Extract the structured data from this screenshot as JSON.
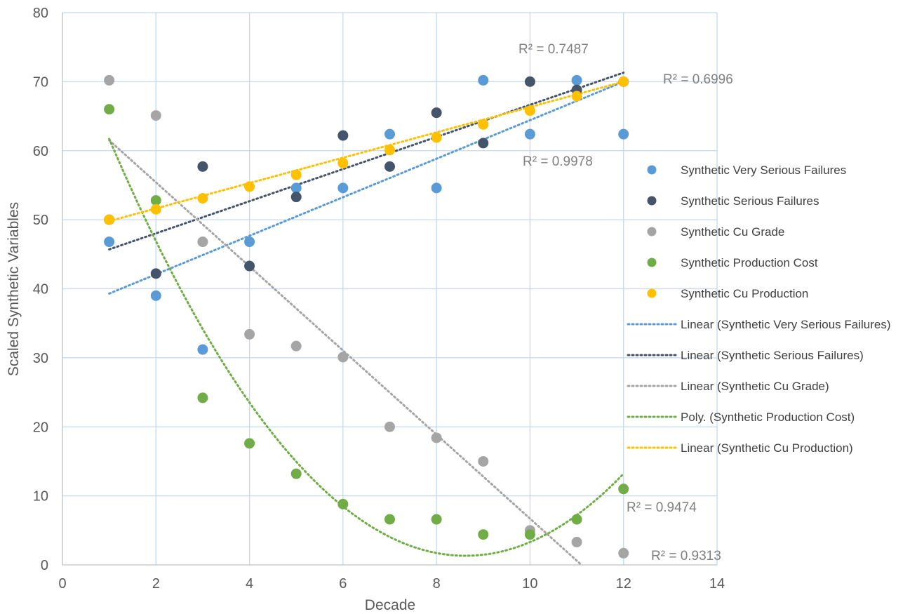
{
  "chart_data": {
    "type": "scatter",
    "xlabel": "Decade",
    "ylabel": "Scaled Synthetic Variables",
    "xlim": [
      0,
      14
    ],
    "ylim": [
      0,
      80
    ],
    "xticks": [
      0,
      2,
      4,
      6,
      8,
      10,
      12,
      14
    ],
    "yticks": [
      0,
      10,
      20,
      30,
      40,
      50,
      60,
      70,
      80
    ],
    "grid": true,
    "legend_position": "right",
    "series": [
      {
        "name": "Synthetic Very Serious Failures",
        "color": "#5B9BD5",
        "x": [
          1,
          2,
          3,
          4,
          5,
          6,
          7,
          8,
          9,
          10,
          11,
          12
        ],
        "y": [
          46.8,
          39.0,
          31.2,
          46.8,
          54.6,
          54.6,
          62.4,
          54.6,
          70.2,
          62.4,
          70.2,
          62.4
        ],
        "trendline": {
          "kind": "linear",
          "label": "Linear (Synthetic Very Serious Failures)",
          "from": [
            1,
            39.3
          ],
          "to": [
            12,
            70.0
          ]
        },
        "r2": "R² = 0.7487"
      },
      {
        "name": "Synthetic Serious Failures",
        "color": "#44546A",
        "x": [
          1,
          2,
          3,
          4,
          5,
          6,
          7,
          8,
          9,
          10,
          11,
          12
        ],
        "y": [
          50.0,
          42.2,
          57.7,
          43.3,
          53.3,
          62.2,
          57.7,
          65.5,
          61.1,
          70.0,
          68.8,
          70.0
        ],
        "trendline": {
          "kind": "linear",
          "label": "Linear (Synthetic Serious Failures)",
          "from": [
            1,
            45.7
          ],
          "to": [
            12,
            71.3
          ]
        },
        "r2": "R² = 0.6996"
      },
      {
        "name": "Synthetic Cu Grade",
        "color": "#A5A5A5",
        "x": [
          1,
          2,
          3,
          4,
          5,
          6,
          7,
          8,
          9,
          10,
          11,
          12
        ],
        "y": [
          70.2,
          65.1,
          46.8,
          33.4,
          31.7,
          30.1,
          20.0,
          18.4,
          15.0,
          5.0,
          3.3,
          1.7
        ],
        "trendline": {
          "kind": "linear",
          "label": "Linear (Synthetic Cu Grade)",
          "from": [
            1,
            61.5
          ],
          "to": [
            11.1,
            0
          ]
        },
        "r2": "R² = 0.9313"
      },
      {
        "name": "Synthetic Production Cost",
        "color": "#70AD47",
        "x": [
          1,
          2,
          3,
          4,
          5,
          6,
          7,
          8,
          9,
          10,
          11,
          12
        ],
        "y": [
          66.0,
          52.8,
          24.2,
          17.6,
          13.2,
          8.8,
          6.6,
          6.6,
          4.4,
          4.4,
          6.6,
          11.0
        ],
        "trendline": {
          "kind": "poly2",
          "label": "Poly. (Synthetic Production Cost)",
          "coefficients": [
            1.04,
            -17.93,
            78.6
          ],
          "range": [
            1,
            12
          ]
        },
        "r2": "R² = 0.9474"
      },
      {
        "name": "Synthetic Cu Production",
        "color": "#FFC000",
        "x": [
          1,
          2,
          3,
          4,
          5,
          6,
          7,
          8,
          9,
          10,
          11,
          12
        ],
        "y": [
          50.0,
          51.5,
          53.1,
          54.8,
          56.5,
          58.2,
          60.1,
          61.9,
          63.8,
          65.8,
          67.9,
          70.0
        ],
        "trendline": {
          "kind": "linear",
          "label": "Linear (Synthetic Cu Production)",
          "from": [
            1,
            49.8
          ],
          "to": [
            12,
            70.0
          ]
        },
        "r2": "R² = 0.9978"
      }
    ]
  }
}
